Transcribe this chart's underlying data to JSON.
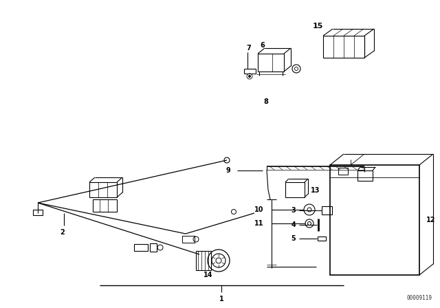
{
  "bg_color": "#ffffff",
  "line_color": "#000000",
  "text_color": "#000000",
  "fig_width": 6.4,
  "fig_height": 4.48,
  "watermark": "00009119"
}
